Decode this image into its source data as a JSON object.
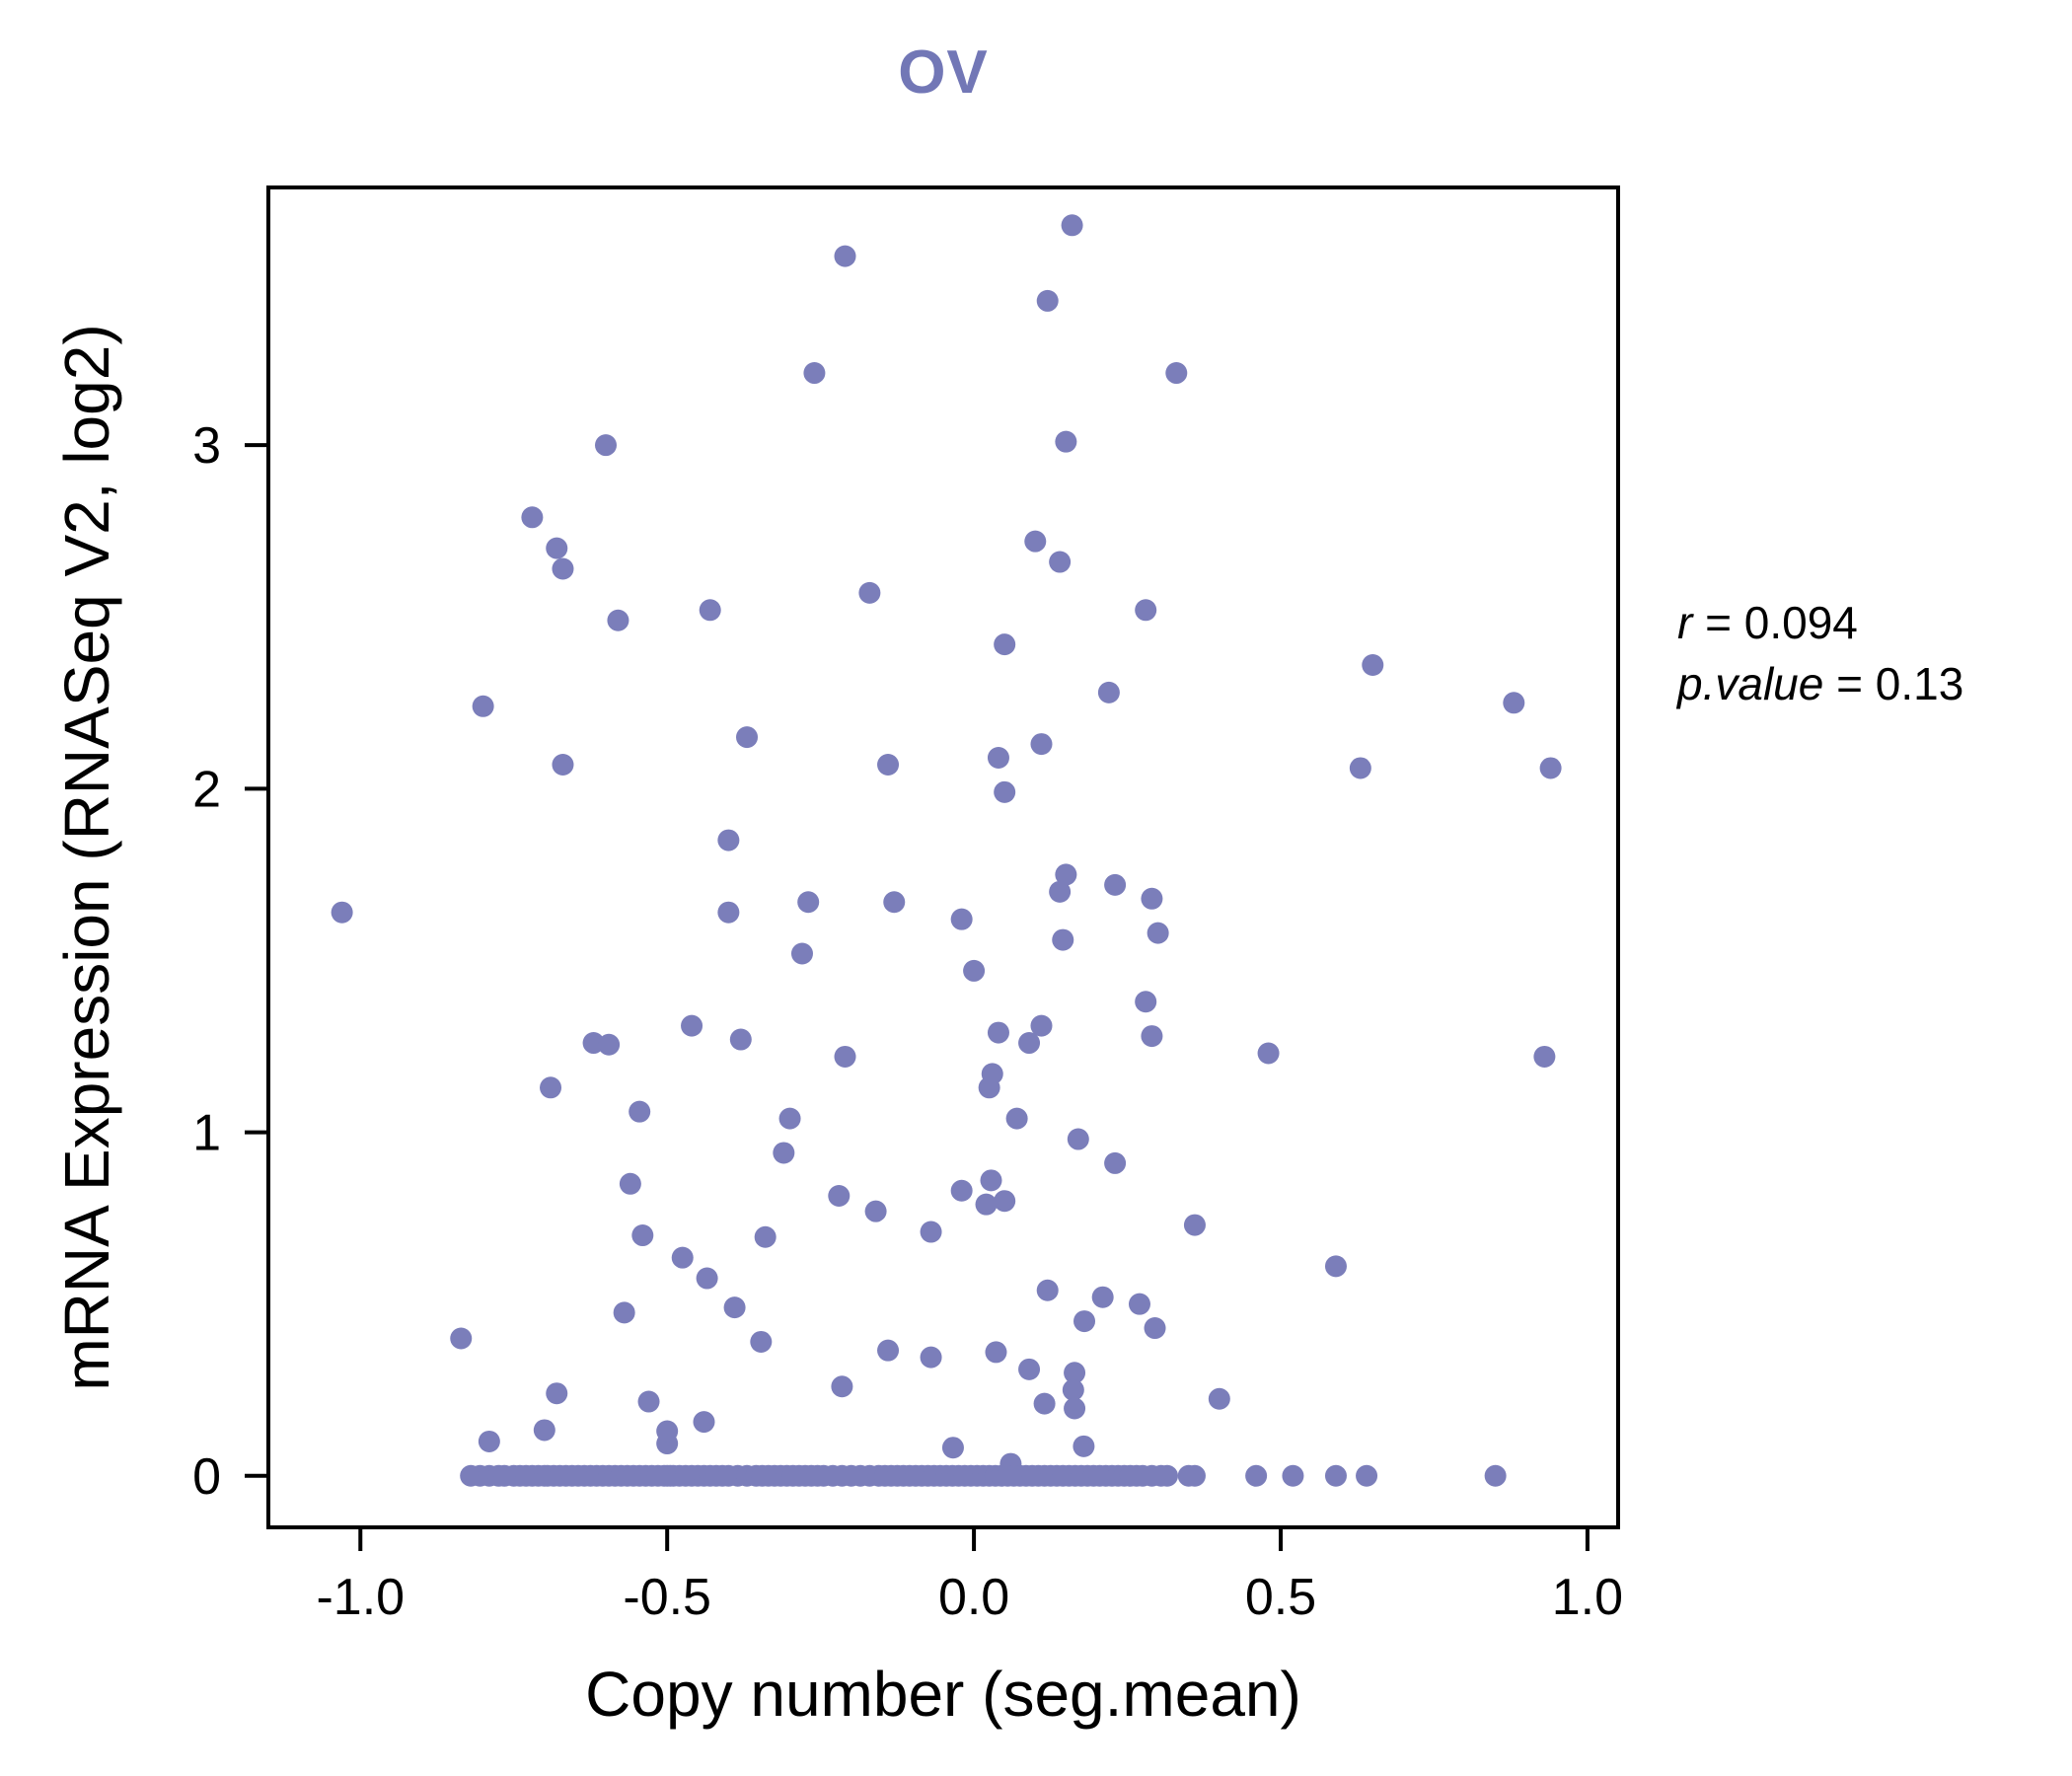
{
  "chart_data": {
    "type": "scatter",
    "title": "OV",
    "xlabel": "Copy number (seg.mean)",
    "ylabel": "mRNA Expression (RNASeq V2, log2)",
    "xlim": [
      -1.15,
      1.05
    ],
    "ylim": [
      -0.15,
      3.75
    ],
    "x_ticks": [
      "-1.0",
      "-0.5",
      "0.0",
      "0.5",
      "1.0"
    ],
    "x_tick_values": [
      -1.0,
      -0.5,
      0.0,
      0.5,
      1.0
    ],
    "y_ticks": [
      "0",
      "1",
      "2",
      "3"
    ],
    "y_tick_values": [
      0,
      1,
      2,
      3
    ],
    "grid": false,
    "legend": "none",
    "point_color": "#7b7eba",
    "title_color": "#7277b6",
    "annotation": {
      "line1_label": "r",
      "line1_rest": " = 0.094",
      "line2_label": "p.value",
      "line2_rest": " = 0.13"
    },
    "points": [
      [
        0.16,
        3.64
      ],
      [
        -0.21,
        3.55
      ],
      [
        0.12,
        3.42
      ],
      [
        -0.26,
        3.21
      ],
      [
        0.33,
        3.21
      ],
      [
        -0.6,
        3.0
      ],
      [
        0.15,
        3.01
      ],
      [
        -0.72,
        2.79
      ],
      [
        -0.68,
        2.7
      ],
      [
        -0.67,
        2.64
      ],
      [
        0.1,
        2.72
      ],
      [
        0.14,
        2.66
      ],
      [
        -0.17,
        2.57
      ],
      [
        -0.58,
        2.49
      ],
      [
        -0.43,
        2.52
      ],
      [
        0.28,
        2.52
      ],
      [
        0.05,
        2.42
      ],
      [
        0.65,
        2.36
      ],
      [
        0.22,
        2.28
      ],
      [
        -0.8,
        2.24
      ],
      [
        0.88,
        2.25
      ],
      [
        -0.37,
        2.15
      ],
      [
        0.11,
        2.13
      ],
      [
        -0.67,
        2.07
      ],
      [
        -0.14,
        2.07
      ],
      [
        0.04,
        2.09
      ],
      [
        0.63,
        2.06
      ],
      [
        0.94,
        2.06
      ],
      [
        0.05,
        1.99
      ],
      [
        -0.4,
        1.85
      ],
      [
        0.15,
        1.75
      ],
      [
        0.23,
        1.72
      ],
      [
        0.29,
        1.68
      ],
      [
        -0.4,
        1.64
      ],
      [
        -0.27,
        1.67
      ],
      [
        -0.13,
        1.67
      ],
      [
        -1.03,
        1.64
      ],
      [
        0.14,
        1.7
      ],
      [
        0.3,
        1.58
      ],
      [
        -0.02,
        1.62
      ],
      [
        0.145,
        1.56
      ],
      [
        -0.28,
        1.52
      ],
      [
        0.0,
        1.47
      ],
      [
        0.28,
        1.38
      ],
      [
        -0.46,
        1.31
      ],
      [
        0.11,
        1.31
      ],
      [
        -0.62,
        1.26
      ],
      [
        -0.595,
        1.255
      ],
      [
        -0.38,
        1.27
      ],
      [
        0.04,
        1.29
      ],
      [
        0.09,
        1.26
      ],
      [
        0.29,
        1.28
      ],
      [
        -0.21,
        1.22
      ],
      [
        0.48,
        1.23
      ],
      [
        0.93,
        1.22
      ],
      [
        0.03,
        1.17
      ],
      [
        -0.69,
        1.13
      ],
      [
        0.025,
        1.13
      ],
      [
        -0.545,
        1.06
      ],
      [
        -0.3,
        1.04
      ],
      [
        0.07,
        1.04
      ],
      [
        0.17,
        0.98
      ],
      [
        -0.31,
        0.94
      ],
      [
        0.23,
        0.91
      ],
      [
        -0.56,
        0.85
      ],
      [
        0.028,
        0.86
      ],
      [
        -0.02,
        0.83
      ],
      [
        -0.22,
        0.815
      ],
      [
        -0.16,
        0.77
      ],
      [
        0.02,
        0.79
      ],
      [
        0.05,
        0.8
      ],
      [
        0.36,
        0.73
      ],
      [
        -0.54,
        0.7
      ],
      [
        -0.34,
        0.695
      ],
      [
        -0.07,
        0.71
      ],
      [
        -0.475,
        0.635
      ],
      [
        0.59,
        0.61
      ],
      [
        -0.435,
        0.575
      ],
      [
        0.12,
        0.54
      ],
      [
        0.21,
        0.52
      ],
      [
        -0.39,
        0.49
      ],
      [
        0.27,
        0.5
      ],
      [
        -0.57,
        0.475
      ],
      [
        0.18,
        0.45
      ],
      [
        0.295,
        0.43
      ],
      [
        -0.836,
        0.4
      ],
      [
        -0.347,
        0.39
      ],
      [
        -0.14,
        0.365
      ],
      [
        0.036,
        0.36
      ],
      [
        -0.07,
        0.345
      ],
      [
        0.09,
        0.31
      ],
      [
        0.164,
        0.3
      ],
      [
        0.162,
        0.25
      ],
      [
        -0.215,
        0.26
      ],
      [
        -0.68,
        0.24
      ],
      [
        0.115,
        0.21
      ],
      [
        0.164,
        0.196
      ],
      [
        -0.53,
        0.216
      ],
      [
        0.4,
        0.224
      ],
      [
        -0.7,
        0.133
      ],
      [
        -0.44,
        0.157
      ],
      [
        -0.034,
        0.082
      ],
      [
        0.179,
        0.086
      ],
      [
        -0.79,
        0.1
      ],
      [
        -0.5,
        0.094
      ],
      [
        0.06,
        0.035
      ],
      [
        -0.5,
        0.13
      ]
    ],
    "baseline_y": 0,
    "baseline_x": [
      -0.82,
      -0.805,
      -0.79,
      -0.775,
      -0.765,
      -0.75,
      -0.74,
      -0.73,
      -0.72,
      -0.71,
      -0.7,
      -0.695,
      -0.685,
      -0.675,
      -0.665,
      -0.655,
      -0.645,
      -0.635,
      -0.625,
      -0.615,
      -0.605,
      -0.595,
      -0.585,
      -0.575,
      -0.565,
      -0.555,
      -0.545,
      -0.535,
      -0.525,
      -0.515,
      -0.505,
      -0.5,
      -0.495,
      -0.49,
      -0.48,
      -0.47,
      -0.46,
      -0.45,
      -0.44,
      -0.43,
      -0.42,
      -0.41,
      -0.4,
      -0.385,
      -0.37,
      -0.355,
      -0.345,
      -0.335,
      -0.325,
      -0.315,
      -0.305,
      -0.295,
      -0.285,
      -0.275,
      -0.265,
      -0.255,
      -0.245,
      -0.23,
      -0.215,
      -0.2,
      -0.185,
      -0.17,
      -0.155,
      -0.145,
      -0.135,
      -0.125,
      -0.115,
      -0.105,
      -0.095,
      -0.085,
      -0.075,
      -0.065,
      -0.055,
      -0.045,
      -0.035,
      -0.025,
      -0.015,
      -0.005,
      0.005,
      0.015,
      0.025,
      0.035,
      0.045,
      0.055,
      0.065,
      0.075,
      0.085,
      0.095,
      0.105,
      0.115,
      0.125,
      0.135,
      0.145,
      0.155,
      0.165,
      0.175,
      0.185,
      0.195,
      0.205,
      0.215,
      0.225,
      0.235,
      0.245,
      0.255,
      0.265,
      0.275,
      0.29,
      0.305,
      0.315,
      0.35,
      0.36,
      0.46,
      0.52,
      0.59,
      0.64,
      0.85
    ]
  }
}
